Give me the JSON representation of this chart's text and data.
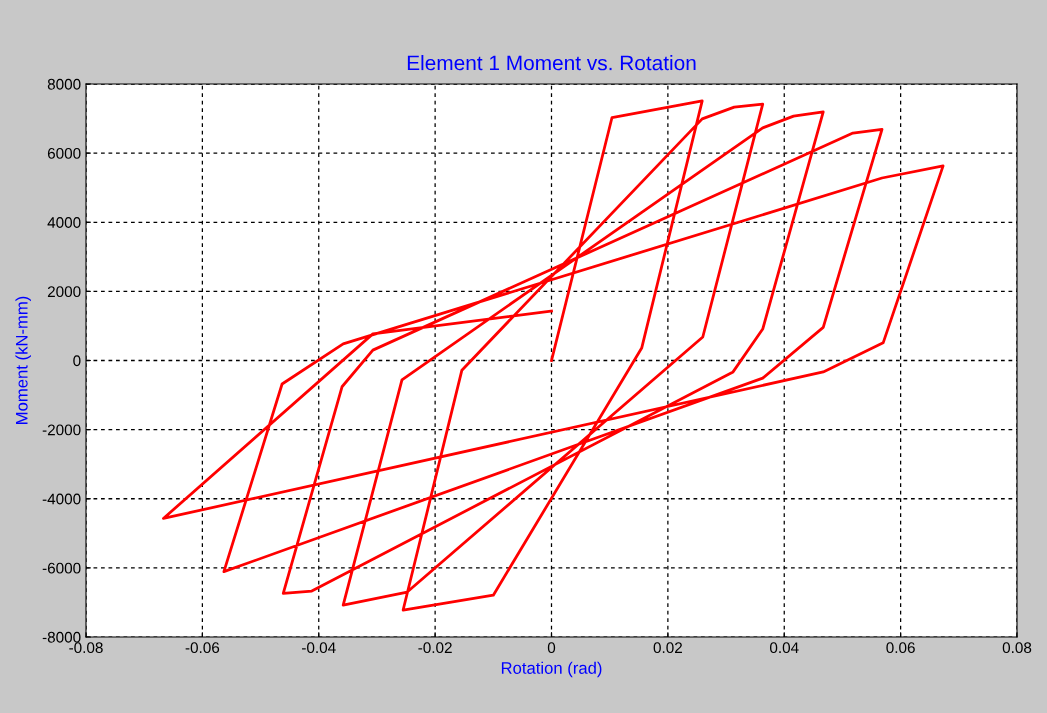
{
  "chart_data": {
    "type": "line",
    "title": "Element 1 Moment vs. Rotation",
    "xlabel": "Rotation (rad)",
    "ylabel": "Moment (kN-mm)",
    "series": [
      {
        "color": "#ff0000",
        "x": [
          0,
          0.0104,
          0.0259,
          0.0155,
          -0.01,
          -0.0255,
          -0.0154,
          0.0259,
          0.0314,
          0.0363,
          0.026,
          -0.0248,
          -0.0358,
          -0.0257,
          0.0363,
          0.0416,
          0.0467,
          0.0363,
          0.0312,
          -0.0412,
          -0.0461,
          -0.036,
          -0.0307,
          0.0518,
          0.0568,
          0.0467,
          0.0363,
          -0.0563,
          -0.0463,
          -0.0358,
          0.0568,
          0.0673,
          0.057,
          0.0467,
          -0.0667,
          -0.0307,
          0
        ],
        "values": [
          0,
          7030,
          7510,
          360,
          -6790,
          -7220,
          -280,
          6990,
          7330,
          7420,
          680,
          -6700,
          -7080,
          -560,
          6730,
          7070,
          7190,
          910,
          -330,
          -6670,
          -6740,
          -760,
          300,
          6580,
          6690,
          960,
          -510,
          -6110,
          -680,
          480,
          5280,
          5630,
          510,
          -330,
          -4570,
          770,
          1430
        ]
      }
    ],
    "xlim": [
      -0.08,
      0.08
    ],
    "xticks": [
      -0.08,
      -0.06,
      -0.04,
      -0.02,
      0,
      0.02,
      0.04,
      0.06,
      0.08
    ],
    "ylim": [
      -8000,
      8000
    ],
    "yticks": [
      -8000,
      -6000,
      -4000,
      -2000,
      0,
      2000,
      4000,
      6000,
      8000
    ],
    "grid": true,
    "marker": "none",
    "line_style": "solid"
  }
}
